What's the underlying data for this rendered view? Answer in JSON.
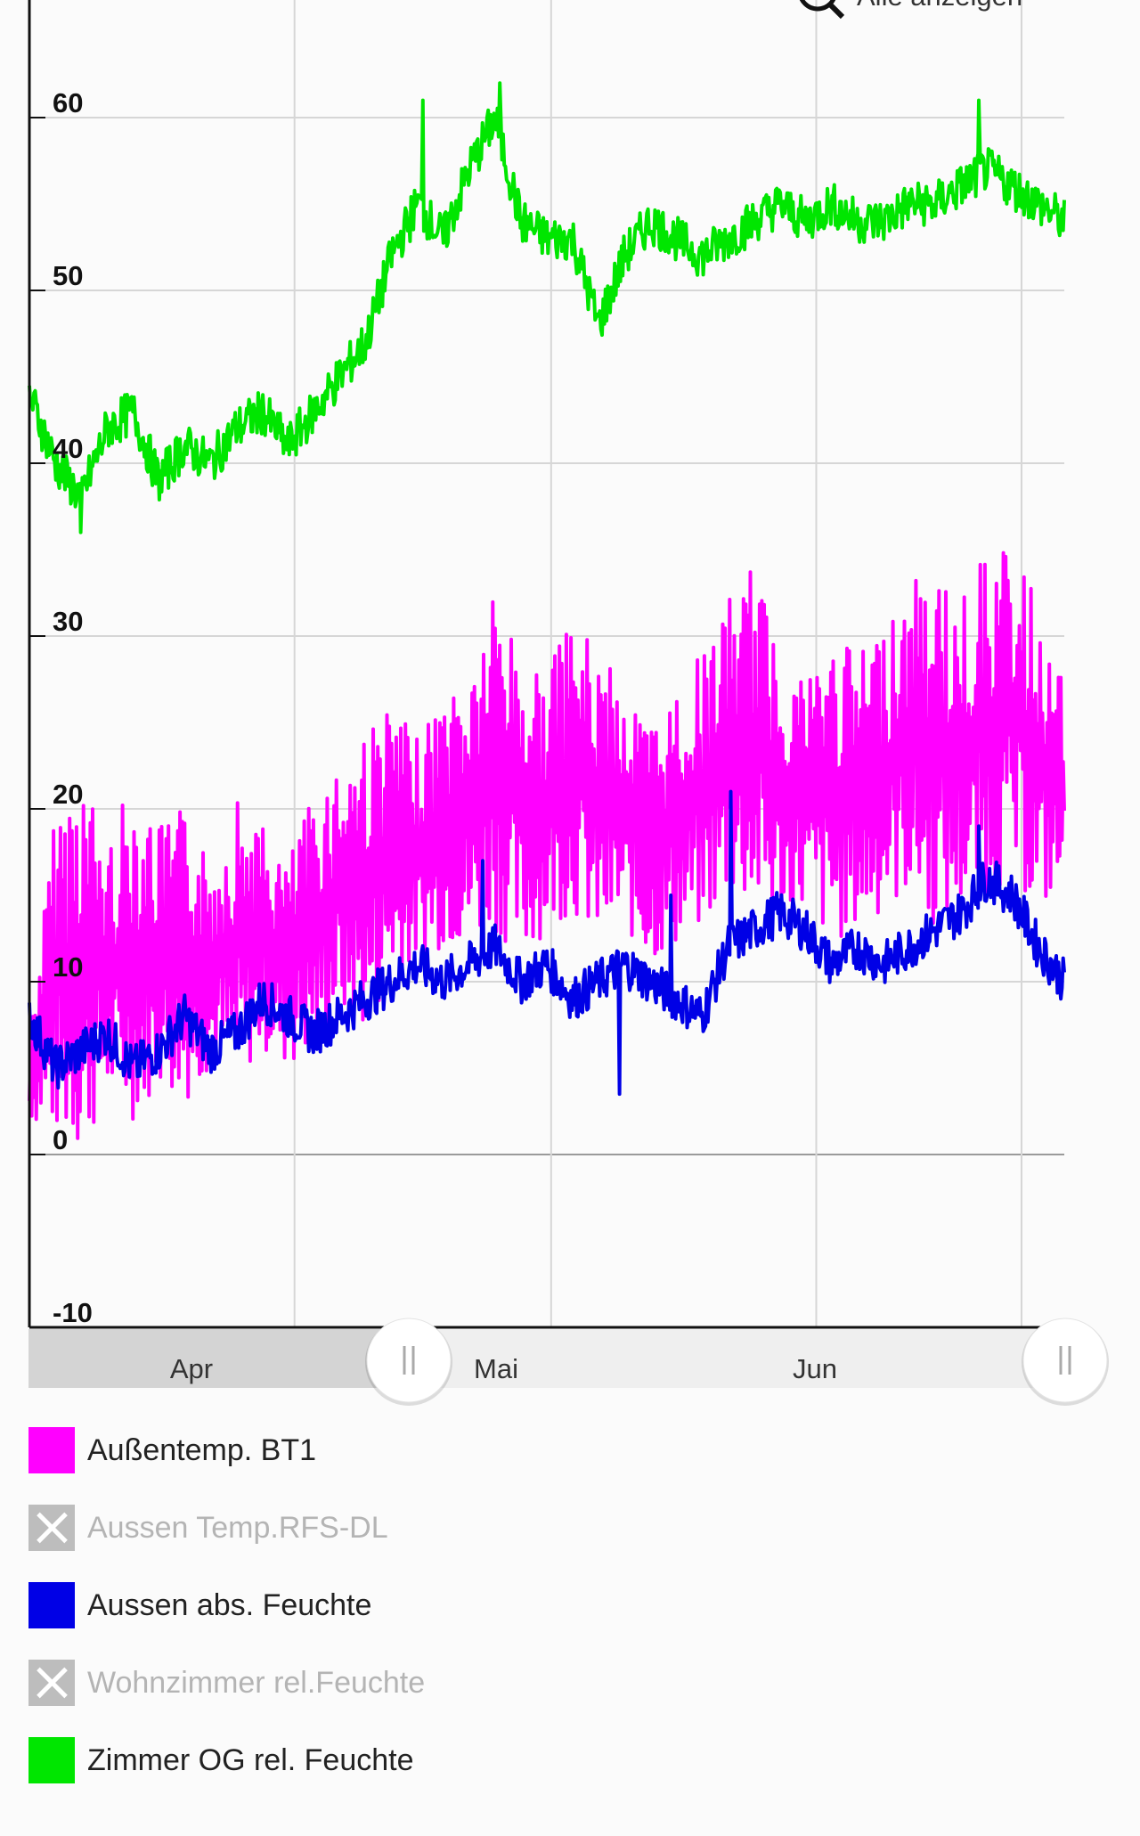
{
  "header": {
    "zoom_label": "Alle anzeigen"
  },
  "chart_data": {
    "type": "line",
    "ylim": [
      -10,
      70
    ],
    "yticks": [
      "-10",
      "0",
      "10",
      "20",
      "30",
      "40",
      "50",
      "60"
    ],
    "x_range": [
      "2023-03-01",
      "2023-06-30"
    ],
    "xtick_labels": [
      "Apr",
      "Mai",
      "Jun"
    ],
    "xlabel": "",
    "ylabel": "",
    "grid": true,
    "legend_position": "bottom",
    "series": [
      {
        "name": "Außentemp. BT1",
        "color": "#ff00ff",
        "visible": true,
        "x": [
          "03-01",
          "03-04",
          "03-07",
          "03-10",
          "03-13",
          "03-16",
          "03-19",
          "03-22",
          "03-25",
          "03-28",
          "03-31",
          "04-03",
          "04-06",
          "04-09",
          "04-12",
          "04-15",
          "04-18",
          "04-21",
          "04-24",
          "04-27",
          "04-30",
          "05-03",
          "05-06",
          "05-09",
          "05-12",
          "05-15",
          "05-18",
          "05-21",
          "05-24",
          "05-27",
          "05-30",
          "06-02",
          "06-05",
          "06-08",
          "06-11",
          "06-14",
          "06-17",
          "06-20",
          "06-23",
          "06-26",
          "06-30"
        ],
        "min": [
          2,
          1,
          0,
          3,
          2,
          4,
          3,
          5,
          4,
          6,
          5,
          6,
          8,
          7,
          10,
          11,
          12,
          12,
          13,
          11,
          13,
          14,
          12,
          13,
          11,
          12,
          13,
          15,
          14,
          13,
          14,
          12,
          13,
          14,
          15,
          13,
          14,
          15,
          16,
          14,
          15
        ],
        "max": [
          7,
          20,
          23,
          18,
          22,
          19,
          20,
          17,
          21,
          19,
          17,
          21,
          23,
          25,
          26,
          24,
          27,
          28,
          33,
          29,
          28,
          31,
          29,
          27,
          25,
          27,
          29,
          32,
          34,
          30,
          28,
          30,
          29,
          31,
          33,
          34,
          32,
          35,
          35,
          32,
          27
        ]
      },
      {
        "name": "Aussen Temp.RFS-DL",
        "color": "#bdbdbd",
        "visible": false
      },
      {
        "name": "Aussen abs. Feuchte",
        "color": "#0000e6",
        "visible": true,
        "x": [
          "03-01",
          "03-04",
          "03-07",
          "03-10",
          "03-13",
          "03-16",
          "03-19",
          "03-22",
          "03-25",
          "03-28",
          "03-31",
          "04-03",
          "04-06",
          "04-09",
          "04-12",
          "04-15",
          "04-18",
          "04-21",
          "04-24",
          "04-27",
          "04-30",
          "05-03",
          "05-06",
          "05-09",
          "05-12",
          "05-15",
          "05-18",
          "05-21",
          "05-24",
          "05-27",
          "05-30",
          "06-02",
          "06-05",
          "06-08",
          "06-11",
          "06-14",
          "06-17",
          "06-20",
          "06-23",
          "06-26",
          "06-30"
        ],
        "values": [
          8,
          5,
          6,
          7,
          5,
          6,
          8,
          6,
          7,
          9,
          8,
          7,
          8,
          9,
          10,
          11,
          10,
          11,
          12,
          10,
          11,
          9,
          10,
          11,
          10,
          9,
          8,
          12,
          13,
          14,
          13,
          11,
          12,
          11,
          12,
          13,
          14,
          16,
          15,
          12,
          10
        ],
        "peaks": [
          {
            "x": "04-23",
            "y": 17
          },
          {
            "x": "05-15",
            "y": 15
          },
          {
            "x": "05-22",
            "y": 21
          },
          {
            "x": "06-20",
            "y": 19
          },
          {
            "x": "05-09",
            "y": 3.5
          }
        ]
      },
      {
        "name": "Wohnzimmer rel.Feuchte",
        "color": "#bdbdbd",
        "visible": false
      },
      {
        "name": "Zimmer OG rel. Feuchte",
        "color": "#00e600",
        "visible": true,
        "x": [
          "03-01",
          "03-04",
          "03-07",
          "03-10",
          "03-13",
          "03-16",
          "03-19",
          "03-22",
          "03-25",
          "03-28",
          "03-31",
          "04-03",
          "04-06",
          "04-09",
          "04-12",
          "04-15",
          "04-18",
          "04-21",
          "04-24",
          "04-27",
          "04-30",
          "05-03",
          "05-06",
          "05-09",
          "05-12",
          "05-15",
          "05-18",
          "05-21",
          "05-24",
          "05-27",
          "05-30",
          "06-02",
          "06-05",
          "06-08",
          "06-11",
          "06-14",
          "06-17",
          "06-20",
          "06-23",
          "06-26",
          "06-30"
        ],
        "values": [
          44,
          40,
          38,
          42,
          43,
          39,
          41,
          40,
          42,
          43,
          41,
          43,
          45,
          47,
          52,
          55,
          53,
          57,
          60,
          54,
          53,
          53,
          48,
          52,
          54,
          53,
          52,
          53,
          54,
          55,
          54,
          55,
          54,
          54,
          55,
          55,
          56,
          57,
          56,
          55,
          54
        ],
        "peaks": [
          {
            "x": "04-16",
            "y": 61
          },
          {
            "x": "04-25",
            "y": 62
          },
          {
            "x": "06-20",
            "y": 61
          },
          {
            "x": "03-07",
            "y": 36
          }
        ]
      }
    ]
  },
  "legend": {
    "items": [
      {
        "label": "Außentemp. BT1",
        "color": "#ff00ff",
        "visible": true
      },
      {
        "label": "Aussen Temp.RFS-DL",
        "color": "#bdbdbd",
        "visible": false
      },
      {
        "label": "Aussen abs. Feuchte",
        "color": "#0000e6",
        "visible": true
      },
      {
        "label": "Wohnzimmer rel.Feuchte",
        "color": "#bdbdbd",
        "visible": false
      },
      {
        "label": "Zimmer OG rel. Feuchte",
        "color": "#00e600",
        "visible": true
      }
    ]
  }
}
